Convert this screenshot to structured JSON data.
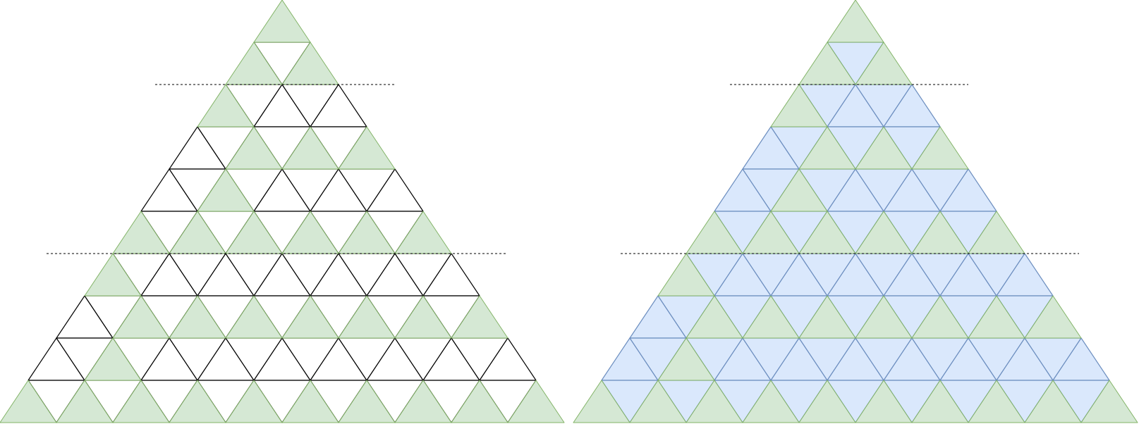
{
  "diagrams": [
    {
      "name": "left-triangle-grid",
      "rows": 10,
      "base_fill": "#ffffff",
      "base_stroke": "#000000",
      "highlight_fill": "#d5e8d4",
      "highlight_stroke": "#82b366",
      "separator_after_rows": [
        2,
        6
      ],
      "highlighted": [
        [
          0
        ],
        [
          0,
          2
        ],
        [
          0
        ],
        [
          2,
          4,
          6
        ],
        [
          2
        ],
        [
          0,
          2,
          4,
          6,
          8,
          10
        ],
        [
          0
        ],
        [
          2,
          4,
          6,
          8,
          10,
          12,
          14
        ],
        [
          2
        ],
        [
          0,
          2,
          4,
          6,
          8,
          10,
          12,
          14,
          16,
          18
        ]
      ]
    },
    {
      "name": "right-triangle-grid",
      "rows": 10,
      "base_fill": "#dae8fc",
      "base_stroke": "#6c8ebf",
      "highlight_fill": "#d5e8d4",
      "highlight_stroke": "#82b366",
      "separator_after_rows": [
        2,
        6
      ],
      "highlighted": [
        [
          0
        ],
        [
          0,
          2
        ],
        [
          0
        ],
        [
          2,
          4,
          6
        ],
        [
          2
        ],
        [
          0,
          2,
          4,
          6,
          8,
          10
        ],
        [
          0
        ],
        [
          2,
          4,
          6,
          8,
          10,
          12,
          14
        ],
        [
          2
        ],
        [
          0,
          2,
          4,
          6,
          8,
          10,
          12,
          14,
          16,
          18
        ]
      ]
    }
  ],
  "separator_color": "#000000"
}
